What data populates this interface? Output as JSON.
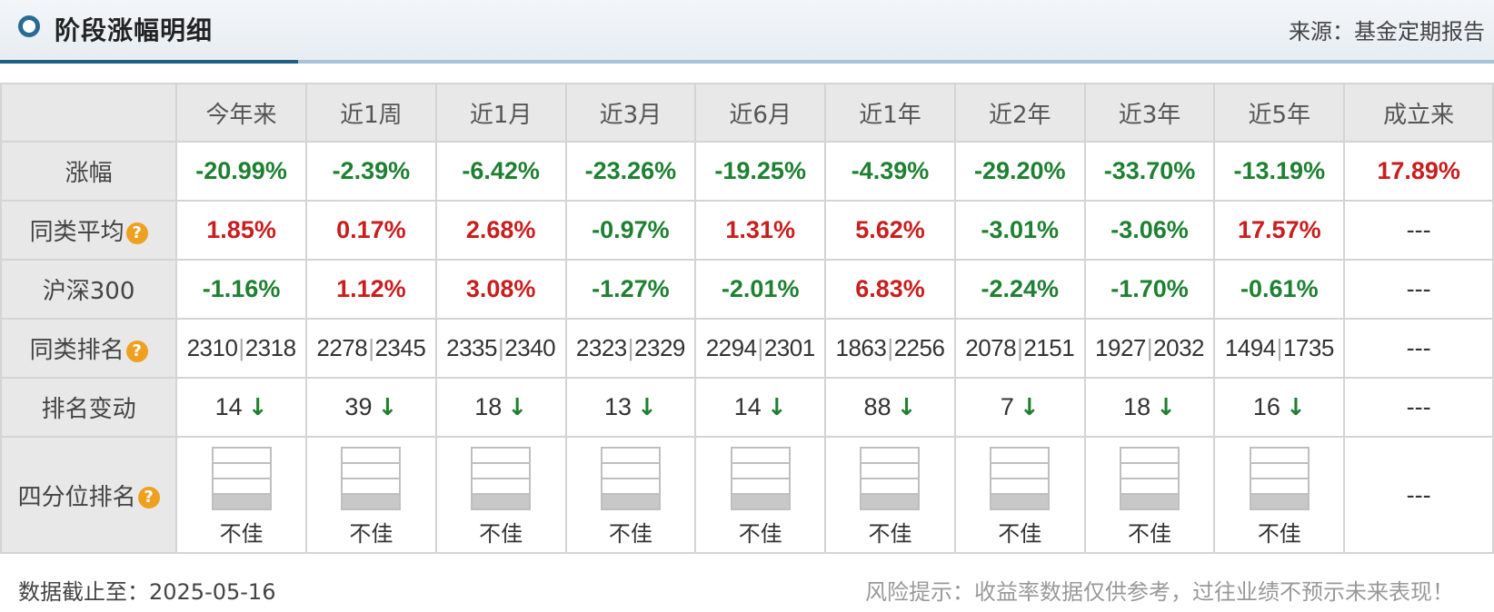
{
  "header": {
    "title": "阶段涨幅明细",
    "source": "来源：基金定期报告"
  },
  "columns": [
    "今年来",
    "近1周",
    "近1月",
    "近3月",
    "近6月",
    "近1年",
    "近2年",
    "近3年",
    "近5年",
    "成立来"
  ],
  "rows": {
    "gain": {
      "label": "涨幅",
      "values": [
        {
          "text": "-20.99%",
          "tone": "neg"
        },
        {
          "text": "-2.39%",
          "tone": "neg"
        },
        {
          "text": "-6.42%",
          "tone": "neg"
        },
        {
          "text": "-23.26%",
          "tone": "neg"
        },
        {
          "text": "-19.25%",
          "tone": "neg"
        },
        {
          "text": "-4.39%",
          "tone": "neg"
        },
        {
          "text": "-29.20%",
          "tone": "neg"
        },
        {
          "text": "-33.70%",
          "tone": "neg"
        },
        {
          "text": "-13.19%",
          "tone": "neg"
        },
        {
          "text": "17.89%",
          "tone": "pos"
        }
      ]
    },
    "peer_avg": {
      "label": "同类平均",
      "help_icon": "help-icon",
      "values": [
        {
          "text": "1.85%",
          "tone": "pos"
        },
        {
          "text": "0.17%",
          "tone": "pos"
        },
        {
          "text": "2.68%",
          "tone": "pos"
        },
        {
          "text": "-0.97%",
          "tone": "neg"
        },
        {
          "text": "1.31%",
          "tone": "pos"
        },
        {
          "text": "5.62%",
          "tone": "pos"
        },
        {
          "text": "-3.01%",
          "tone": "neg"
        },
        {
          "text": "-3.06%",
          "tone": "neg"
        },
        {
          "text": "17.57%",
          "tone": "pos"
        },
        {
          "text": "---",
          "tone": "plain"
        }
      ]
    },
    "csi300": {
      "label": "沪深300",
      "values": [
        {
          "text": "-1.16%",
          "tone": "neg"
        },
        {
          "text": "1.12%",
          "tone": "pos"
        },
        {
          "text": "3.08%",
          "tone": "pos"
        },
        {
          "text": "-1.27%",
          "tone": "neg"
        },
        {
          "text": "-2.01%",
          "tone": "neg"
        },
        {
          "text": "6.83%",
          "tone": "pos"
        },
        {
          "text": "-2.24%",
          "tone": "neg"
        },
        {
          "text": "-1.70%",
          "tone": "neg"
        },
        {
          "text": "-0.61%",
          "tone": "neg"
        },
        {
          "text": "---",
          "tone": "plain"
        }
      ]
    },
    "peer_rank": {
      "label": "同类排名",
      "help_icon": "help-icon",
      "separator": "|",
      "values": [
        {
          "rank": "2310",
          "total": "2318"
        },
        {
          "rank": "2278",
          "total": "2345"
        },
        {
          "rank": "2335",
          "total": "2340"
        },
        {
          "rank": "2323",
          "total": "2329"
        },
        {
          "rank": "2294",
          "total": "2301"
        },
        {
          "rank": "1863",
          "total": "2256"
        },
        {
          "rank": "2078",
          "total": "2151"
        },
        {
          "rank": "1927",
          "total": "2032"
        },
        {
          "rank": "1494",
          "total": "1735"
        },
        {
          "placeholder": "---"
        }
      ]
    },
    "rank_change": {
      "label": "排名变动",
      "arrow": "↓",
      "values": [
        {
          "text": "14",
          "direction": "down"
        },
        {
          "text": "39",
          "direction": "down"
        },
        {
          "text": "18",
          "direction": "down"
        },
        {
          "text": "13",
          "direction": "down"
        },
        {
          "text": "14",
          "direction": "down"
        },
        {
          "text": "88",
          "direction": "down"
        },
        {
          "text": "7",
          "direction": "down"
        },
        {
          "text": "18",
          "direction": "down"
        },
        {
          "text": "16",
          "direction": "down"
        },
        {
          "placeholder": "---"
        }
      ]
    },
    "quartile": {
      "label": "四分位排名",
      "help_icon": "help-icon",
      "values": [
        {
          "filled_quartile": 4,
          "label": "不佳"
        },
        {
          "filled_quartile": 4,
          "label": "不佳"
        },
        {
          "filled_quartile": 4,
          "label": "不佳"
        },
        {
          "filled_quartile": 4,
          "label": "不佳"
        },
        {
          "filled_quartile": 4,
          "label": "不佳"
        },
        {
          "filled_quartile": 4,
          "label": "不佳"
        },
        {
          "filled_quartile": 4,
          "label": "不佳"
        },
        {
          "filled_quartile": 4,
          "label": "不佳"
        },
        {
          "filled_quartile": 4,
          "label": "不佳"
        },
        {
          "placeholder": "---"
        }
      ]
    }
  },
  "colors": {
    "positive": "#c81e1e",
    "negative": "#1e8030",
    "accent": "#1e5f86",
    "help_icon": "#f0a020"
  },
  "footer": {
    "date": "数据截止至：2025-05-16",
    "risk": "风险提示：收益率数据仅供参考，过往业绩不预示未来表现！"
  }
}
